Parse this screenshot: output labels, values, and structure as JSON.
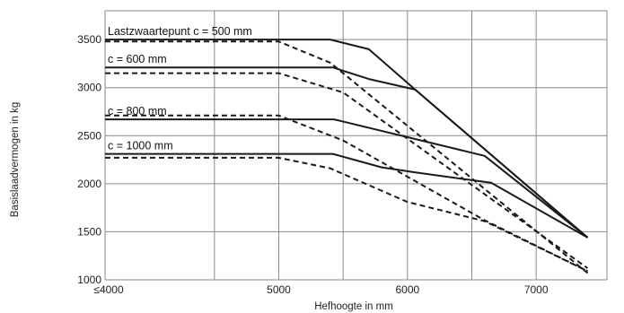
{
  "chart_data": {
    "type": "line",
    "xlabel": "Hefhoogte in mm",
    "ylabel": "Basislaadvermogen in kg",
    "xlim": [
      3650,
      7550
    ],
    "ylim": [
      1000,
      3800
    ],
    "x_ticks": [
      {
        "value": 3650,
        "label": "≤4000"
      },
      {
        "value": 5000,
        "label": "5000"
      },
      {
        "value": 6000,
        "label": "6000"
      },
      {
        "value": 7000,
        "label": "7000"
      }
    ],
    "x_gridlines": [
      3650,
      4500,
      5000,
      5500,
      6000,
      6500,
      7000,
      7550
    ],
    "y_ticks": [
      1000,
      1500,
      2000,
      2500,
      3000,
      3500
    ],
    "y_gridlines": [
      1000,
      1500,
      2000,
      2500,
      3000,
      3500,
      3800
    ],
    "grid": true,
    "series": [
      {
        "name": "Lastzwaartepunt c = 500 mm",
        "style": "solid",
        "x": [
          3650,
          5400,
          5700,
          6060,
          7400
        ],
        "y": [
          3500,
          3500,
          3400,
          2980,
          1440
        ]
      },
      {
        "style": "dashed",
        "x": [
          3650,
          5000,
          5400,
          7400
        ],
        "y": [
          3480,
          3480,
          3260,
          1070
        ]
      },
      {
        "name": "c = 600 mm",
        "style": "solid",
        "x": [
          3650,
          5420,
          5700,
          6060,
          7400
        ],
        "y": [
          3210,
          3210,
          3090,
          2980,
          1440
        ]
      },
      {
        "style": "dashed",
        "x": [
          3650,
          5000,
          5500,
          7400
        ],
        "y": [
          3150,
          3150,
          2950,
          1120
        ]
      },
      {
        "name": "c = 800 mm",
        "style": "solid",
        "x": [
          3650,
          5430,
          6600,
          7400
        ],
        "y": [
          2670,
          2670,
          2290,
          1440
        ]
      },
      {
        "style": "dashed",
        "x": [
          3650,
          5000,
          5500,
          6600,
          7400
        ],
        "y": [
          2710,
          2710,
          2450,
          1620,
          1090
        ]
      },
      {
        "name": "c = 1000 mm",
        "style": "solid",
        "x": [
          3650,
          5420,
          5800,
          6050,
          6650,
          7400
        ],
        "y": [
          2310,
          2310,
          2170,
          2120,
          2010,
          1440
        ]
      },
      {
        "style": "dashed",
        "x": [
          3650,
          5000,
          5400,
          6000,
          6600,
          7400
        ],
        "y": [
          2270,
          2270,
          2160,
          1810,
          1610,
          1090
        ]
      }
    ]
  }
}
